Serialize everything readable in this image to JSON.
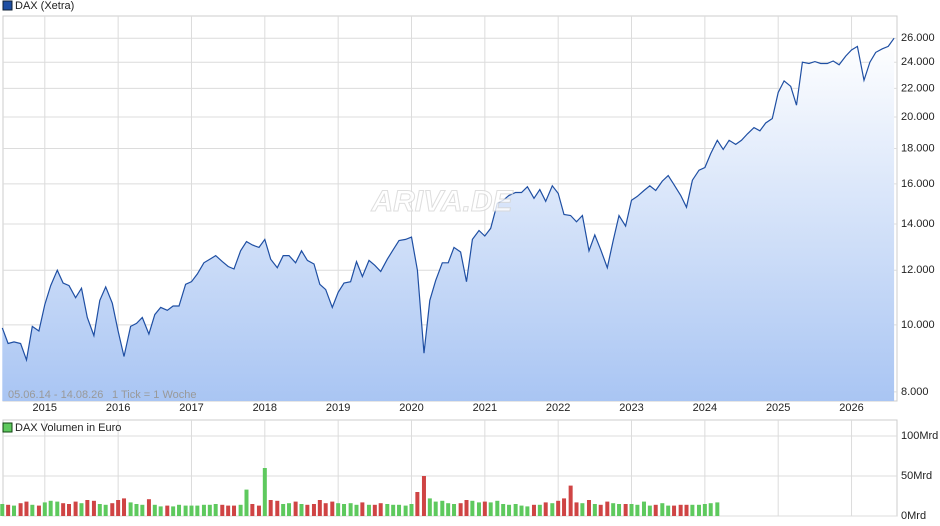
{
  "chart_data": [
    {
      "type": "line",
      "log_scale": true,
      "grid": true,
      "range_note": "05.06.14 - 14.08.26",
      "tick_note": "1 Tick = 1 Woche",
      "watermark": "ARIVA.DE",
      "xlim": [
        2014.43,
        2026.62
      ],
      "xticks": [
        2015,
        2016,
        2017,
        2018,
        2019,
        2020,
        2021,
        2022,
        2023,
        2024,
        2025,
        2026
      ],
      "ylim": [
        7760,
        28000
      ],
      "yticks": [
        {
          "value": 8000,
          "label": "8.000"
        },
        {
          "value": 10000,
          "label": "10.000"
        },
        {
          "value": 12000,
          "label": "12.000"
        },
        {
          "value": 14000,
          "label": "14.000"
        },
        {
          "value": 16000,
          "label": "16.000"
        },
        {
          "value": 18000,
          "label": "18.000"
        },
        {
          "value": 20000,
          "label": "20.000"
        },
        {
          "value": 22000,
          "label": "22.000"
        },
        {
          "value": 24000,
          "label": "24.000"
        },
        {
          "value": 26000,
          "label": "26.000"
        }
      ],
      "x": [
        2014.42,
        2014.5,
        2014.58,
        2014.67,
        2014.75,
        2014.83,
        2014.92,
        2015.0,
        2015.08,
        2015.17,
        2015.25,
        2015.33,
        2015.42,
        2015.5,
        2015.58,
        2015.67,
        2015.75,
        2015.83,
        2015.92,
        2016.0,
        2016.08,
        2016.17,
        2016.25,
        2016.33,
        2016.42,
        2016.5,
        2016.58,
        2016.67,
        2016.75,
        2016.83,
        2016.92,
        2017.0,
        2017.08,
        2017.17,
        2017.25,
        2017.33,
        2017.42,
        2017.5,
        2017.58,
        2017.67,
        2017.75,
        2017.83,
        2017.92,
        2018.0,
        2018.08,
        2018.17,
        2018.25,
        2018.33,
        2018.42,
        2018.5,
        2018.58,
        2018.67,
        2018.75,
        2018.83,
        2018.92,
        2019.0,
        2019.08,
        2019.17,
        2019.25,
        2019.33,
        2019.42,
        2019.5,
        2019.58,
        2019.67,
        2019.75,
        2019.83,
        2019.92,
        2020.0,
        2020.08,
        2020.17,
        2020.25,
        2020.33,
        2020.42,
        2020.5,
        2020.58,
        2020.67,
        2020.75,
        2020.83,
        2020.92,
        2021.0,
        2021.08,
        2021.17,
        2021.25,
        2021.33,
        2021.42,
        2021.5,
        2021.58,
        2021.67,
        2021.75,
        2021.83,
        2021.92,
        2022.0,
        2022.08,
        2022.17,
        2022.25,
        2022.33,
        2022.42,
        2022.5,
        2022.58,
        2022.67,
        2022.75,
        2022.83,
        2022.92,
        2023.0,
        2023.08,
        2023.17,
        2023.25,
        2023.33,
        2023.42,
        2023.5,
        2023.58,
        2023.67,
        2023.75,
        2023.83,
        2023.92,
        2024.0,
        2024.08,
        2024.17,
        2024.25,
        2024.33,
        2024.42,
        2024.5,
        2024.58,
        2024.67,
        2024.75,
        2024.83,
        2024.92,
        2025.0,
        2025.08,
        2025.17,
        2025.25,
        2025.33,
        2025.42,
        2025.5,
        2025.58,
        2025.67,
        2025.75,
        2025.83,
        2025.92,
        2026.0,
        2026.08,
        2026.17,
        2026.25,
        2026.33,
        2026.42,
        2026.5,
        2026.58
      ],
      "series": [
        {
          "name": "DAX (Xetra)",
          "color": "#1f4fa3",
          "fill": "#a9c5f3",
          "values": [
            9900,
            9400,
            9450,
            9400,
            8900,
            9950,
            9800,
            10700,
            11400,
            12000,
            11500,
            11400,
            10950,
            11300,
            10250,
            9650,
            10850,
            11350,
            10750,
            9800,
            9000,
            9950,
            10050,
            10250,
            9700,
            10350,
            10600,
            10500,
            10650,
            10650,
            11450,
            11550,
            11850,
            12300,
            12450,
            12600,
            12350,
            12150,
            12050,
            12800,
            13200,
            13050,
            12950,
            13300,
            12450,
            12100,
            12600,
            12600,
            12300,
            12800,
            12400,
            12250,
            11450,
            11250,
            10600,
            11150,
            11500,
            11550,
            12350,
            11750,
            12400,
            12200,
            11950,
            12450,
            12850,
            13250,
            13300,
            13400,
            12000,
            9100,
            10850,
            11600,
            12300,
            12300,
            12950,
            12750,
            11550,
            13300,
            13700,
            13450,
            13800,
            15000,
            15150,
            15400,
            15550,
            15550,
            15850,
            15250,
            15700,
            15100,
            15900,
            15500,
            14450,
            14400,
            14100,
            14400,
            12800,
            13500,
            12850,
            12100,
            13250,
            14400,
            13900,
            15150,
            15350,
            15650,
            15900,
            15650,
            16150,
            16450,
            15950,
            15400,
            14800,
            16200,
            16750,
            16900,
            17700,
            18500,
            17950,
            18500,
            18250,
            18500,
            18900,
            19300,
            19100,
            19600,
            19900,
            21700,
            22550,
            22150,
            20800,
            24000,
            23900,
            24050,
            23900,
            23900,
            24100,
            23800,
            24500,
            25000,
            25300,
            22600,
            24000,
            24800,
            25100,
            25300,
            26000
          ]
        }
      ]
    },
    {
      "type": "bar",
      "grid": true,
      "ylim": [
        0,
        120
      ],
      "yticks": [
        {
          "value": 0,
          "label": "0Mrd"
        },
        {
          "value": 50,
          "label": "50Mrd"
        },
        {
          "value": 100,
          "label": "100Mrd"
        }
      ],
      "series": [
        {
          "name": "DAX Volumen in Euro",
          "color": "#5ec95e",
          "down_color": "#cf4444",
          "values": [
            15,
            14,
            13,
            16,
            18,
            14,
            13,
            17,
            19,
            18,
            16,
            15,
            18,
            16,
            20,
            19,
            15,
            14,
            16,
            20,
            22,
            17,
            15,
            14,
            21,
            14,
            12,
            13,
            12,
            14,
            13,
            13,
            13,
            14,
            14,
            15,
            14,
            13,
            13,
            14,
            33,
            15,
            13,
            60,
            20,
            19,
            15,
            16,
            18,
            15,
            14,
            15,
            20,
            16,
            18,
            16,
            15,
            16,
            14,
            17,
            14,
            14,
            16,
            15,
            14,
            14,
            13,
            15,
            30,
            50,
            22,
            18,
            19,
            16,
            15,
            16,
            20,
            19,
            17,
            18,
            17,
            19,
            15,
            14,
            15,
            13,
            12,
            14,
            14,
            17,
            16,
            19,
            22,
            38,
            17,
            16,
            20,
            15,
            14,
            18,
            16,
            15,
            15,
            15,
            14,
            18,
            13,
            14,
            16,
            13,
            13,
            14,
            14,
            14,
            14,
            15,
            16,
            17,
            null,
            null,
            null,
            null,
            null,
            null,
            null,
            null,
            null,
            null,
            null,
            null,
            null,
            null,
            null,
            null,
            null,
            null,
            null,
            null,
            null,
            null,
            null,
            null,
            null,
            null,
            null,
            null,
            null
          ]
        }
      ]
    }
  ]
}
